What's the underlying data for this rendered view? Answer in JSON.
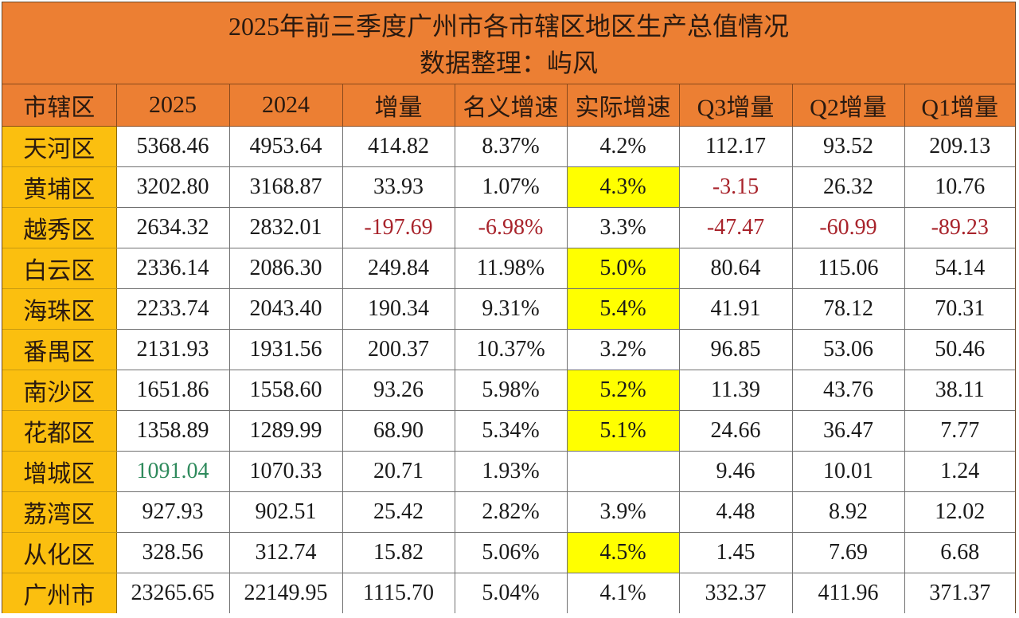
{
  "title": {
    "line1": "2025年前三季度广州市各市辖区地区生产总值情况",
    "line2": "数据整理：屿风"
  },
  "colors": {
    "title_bg": "#ec7f33",
    "district_bg": "#fbbf0f",
    "highlight_bg": "#ffff00",
    "negative_text": "#a8232b",
    "green_text": "#2e8a5c"
  },
  "headers": [
    "市辖区",
    "2025",
    "2024",
    "增量",
    "名义增速",
    "实际增速",
    "Q3增量",
    "Q2增量",
    "Q1增量"
  ],
  "rows": [
    {
      "district": "天河区",
      "v2025": "5368.46",
      "v2024": "4953.64",
      "increment": "414.82",
      "nominal": "8.37%",
      "real": "4.2%",
      "q3": "112.17",
      "q2": "93.52",
      "q1": "209.13"
    },
    {
      "district": "黄埔区",
      "v2025": "3202.80",
      "v2024": "3168.87",
      "increment": "33.93",
      "nominal": "1.07%",
      "real": "4.3%",
      "q3": "-3.15",
      "q2": "26.32",
      "q1": "10.76"
    },
    {
      "district": "越秀区",
      "v2025": "2634.32",
      "v2024": "2832.01",
      "increment": "-197.69",
      "nominal": "-6.98%",
      "real": "3.3%",
      "q3": "-47.47",
      "q2": "-60.99",
      "q1": "-89.23"
    },
    {
      "district": "白云区",
      "v2025": "2336.14",
      "v2024": "2086.30",
      "increment": "249.84",
      "nominal": "11.98%",
      "real": "5.0%",
      "q3": "80.64",
      "q2": "115.06",
      "q1": "54.14"
    },
    {
      "district": "海珠区",
      "v2025": "2233.74",
      "v2024": "2043.40",
      "increment": "190.34",
      "nominal": "9.31%",
      "real": "5.4%",
      "q3": "41.91",
      "q2": "78.12",
      "q1": "70.31"
    },
    {
      "district": "番禺区",
      "v2025": "2131.93",
      "v2024": "1931.56",
      "increment": "200.37",
      "nominal": "10.37%",
      "real": "3.2%",
      "q3": "96.85",
      "q2": "53.06",
      "q1": "50.46"
    },
    {
      "district": "南沙区",
      "v2025": "1651.86",
      "v2024": "1558.60",
      "increment": "93.26",
      "nominal": "5.98%",
      "real": "5.2%",
      "q3": "11.39",
      "q2": "43.76",
      "q1": "38.11"
    },
    {
      "district": "花都区",
      "v2025": "1358.89",
      "v2024": "1289.99",
      "increment": "68.90",
      "nominal": "5.34%",
      "real": "5.1%",
      "q3": "24.66",
      "q2": "36.47",
      "q1": "7.77"
    },
    {
      "district": "增城区",
      "v2025": "1091.04",
      "v2024": "1070.33",
      "increment": "20.71",
      "nominal": "1.93%",
      "real": "",
      "q3": "9.46",
      "q2": "10.01",
      "q1": "1.24"
    },
    {
      "district": "荔湾区",
      "v2025": "927.93",
      "v2024": "902.51",
      "increment": "25.42",
      "nominal": "2.82%",
      "real": "3.9%",
      "q3": "4.48",
      "q2": "8.92",
      "q1": "12.02"
    },
    {
      "district": "从化区",
      "v2025": "328.56",
      "v2024": "312.74",
      "increment": "15.82",
      "nominal": "5.06%",
      "real": "4.5%",
      "q3": "1.45",
      "q2": "7.69",
      "q1": "6.68"
    },
    {
      "district": "广州市",
      "v2025": "23265.65",
      "v2024": "22149.95",
      "increment": "1115.70",
      "nominal": "5.04%",
      "real": "4.1%",
      "q3": "332.37",
      "q2": "411.96",
      "q1": "371.37"
    }
  ]
}
